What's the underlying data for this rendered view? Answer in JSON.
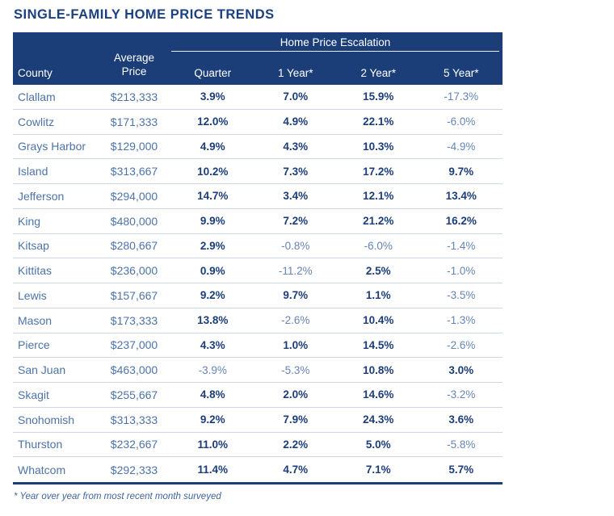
{
  "title": "SINGLE-FAMILY HOME PRICE TRENDS",
  "colors": {
    "navy": "#1b3e78",
    "title_navy": "#1b4080",
    "medium_blue": "#4d74a9",
    "negative_blue": "#6585b8",
    "row_divider": "#ccd6e6",
    "header_text": "#ffffff"
  },
  "table": {
    "group_header": "Home Price Escalation",
    "columns": [
      "County",
      "Average\nPrice",
      "Quarter",
      "1 Year*",
      "2 Year*",
      "5 Year*"
    ],
    "rows": [
      [
        "Clallam",
        "$213,333",
        "3.9%",
        "7.0%",
        "15.9%",
        "-17.3%"
      ],
      [
        "Cowlitz",
        "$171,333",
        "12.0%",
        "4.9%",
        "22.1%",
        "-6.0%"
      ],
      [
        "Grays Harbor",
        "$129,000",
        "4.9%",
        "4.3%",
        "10.3%",
        "-4.9%"
      ],
      [
        "Island",
        "$313,667",
        "10.2%",
        "7.3%",
        "17.2%",
        "9.7%"
      ],
      [
        "Jefferson",
        "$294,000",
        "14.7%",
        "3.4%",
        "12.1%",
        "13.4%"
      ],
      [
        "King",
        "$480,000",
        "9.9%",
        "7.2%",
        "21.2%",
        "16.2%"
      ],
      [
        "Kitsap",
        "$280,667",
        "2.9%",
        "-0.8%",
        "-6.0%",
        "-1.4%"
      ],
      [
        "Kittitas",
        "$236,000",
        "0.9%",
        "-11.2%",
        "2.5%",
        "-1.0%"
      ],
      [
        "Lewis",
        "$157,667",
        "9.2%",
        "9.7%",
        "1.1%",
        "-3.5%"
      ],
      [
        "Mason",
        "$173,333",
        "13.8%",
        "-2.6%",
        "10.4%",
        "-1.3%"
      ],
      [
        "Pierce",
        "$237,000",
        "4.3%",
        "1.0%",
        "14.5%",
        "-2.6%"
      ],
      [
        "San Juan",
        "$463,000",
        "-3.9%",
        "-5.3%",
        "10.8%",
        "3.0%"
      ],
      [
        "Skagit",
        "$255,667",
        "4.8%",
        "2.0%",
        "14.6%",
        "-3.2%"
      ],
      [
        "Snohomish",
        "$313,333",
        "9.2%",
        "7.9%",
        "24.3%",
        "3.6%"
      ],
      [
        "Thurston",
        "$232,667",
        "11.0%",
        "2.2%",
        "5.0%",
        "-5.8%"
      ],
      [
        "Whatcom",
        "$292,333",
        "11.4%",
        "4.7%",
        "7.1%",
        "5.7%"
      ]
    ]
  },
  "footnote": "* Year over year from most recent month surveyed"
}
